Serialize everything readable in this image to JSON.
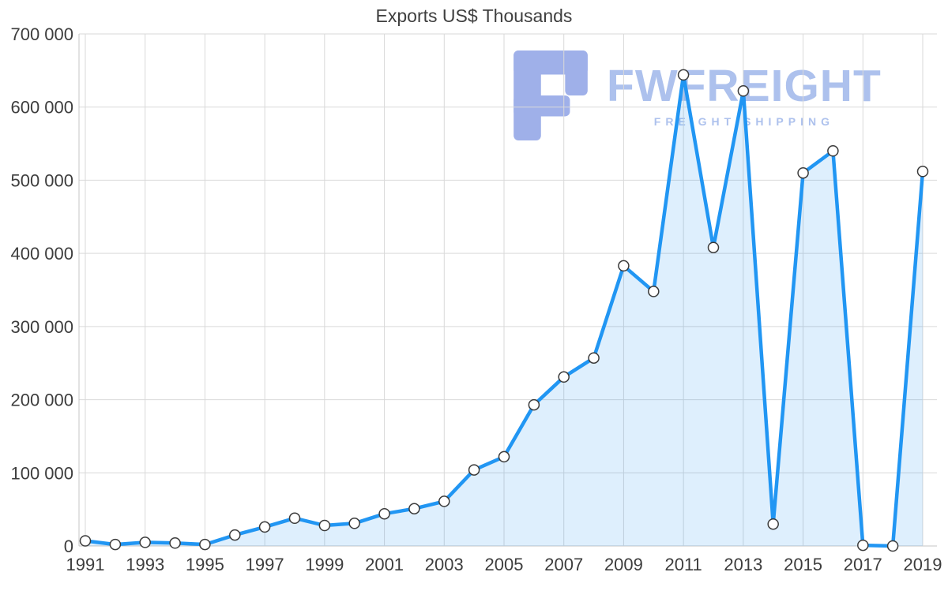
{
  "page": {
    "background": "#ffffff"
  },
  "chart_data": {
    "type": "area",
    "title": "Exports US$ Thousands",
    "x": [
      1991,
      1992,
      1993,
      1994,
      1995,
      1996,
      1997,
      1998,
      1999,
      2000,
      2001,
      2002,
      2003,
      2004,
      2005,
      2006,
      2007,
      2008,
      2009,
      2010,
      2011,
      2012,
      2013,
      2014,
      2015,
      2016,
      2017,
      2018,
      2019
    ],
    "series": [
      {
        "name": "Exports US$ Thousands",
        "values": [
          7000,
          2000,
          5000,
          4000,
          2000,
          15000,
          26000,
          38000,
          28000,
          31000,
          44000,
          51000,
          61000,
          104000,
          122000,
          193000,
          231000,
          257000,
          383000,
          348000,
          644000,
          408000,
          622000,
          30000,
          510000,
          540000,
          1000,
          0,
          512000
        ]
      }
    ],
    "ylim": [
      0,
      700000
    ],
    "ytick_step": 100000,
    "ytick_labels": [
      "0",
      "100 000",
      "200 000",
      "300 000",
      "400 000",
      "500 000",
      "600 000",
      "700 000"
    ],
    "xtick_labels": [
      "1991",
      "1993",
      "1995",
      "1997",
      "1999",
      "2001",
      "2003",
      "2005",
      "2007",
      "2009",
      "2011",
      "2013",
      "2015",
      "2017",
      "2019"
    ],
    "grid": true,
    "legend": "none",
    "line_color": "#2196f3",
    "fill_color": "rgba(33,150,243,0.15)",
    "marker_fill": "#ffffff",
    "marker_stroke": "#3a3a3a",
    "grid_color": "#d9d9d9",
    "axis_color": "#c4c4c4",
    "label_color": "#3d3d3d"
  },
  "watermark": {
    "brand": "FWFREIGHT",
    "tagline": "FREIGHT SHIPPING",
    "color": "#9fb7ea",
    "logo_color": "#8fa3e6"
  }
}
